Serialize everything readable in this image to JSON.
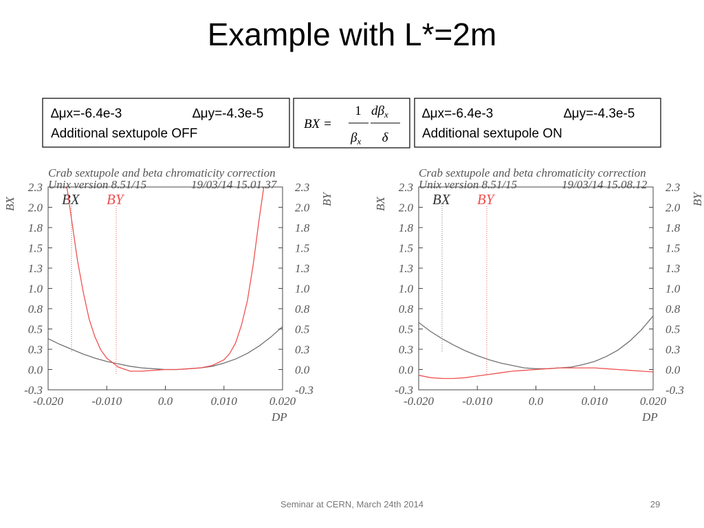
{
  "title": "Example with L*=2m",
  "boxes": [
    {
      "mu_x": "∆μx=-6.4e-3",
      "mu_y": "∆μy=-4.3e-5",
      "text": "Additional sextupole OFF"
    },
    {
      "mu_x": "∆μx=-6.4e-3",
      "mu_y": "∆μy=-4.3e-5",
      "text": "Additional sextupole ON"
    }
  ],
  "formula": {
    "lhs": "BX =",
    "num1": "1",
    "den1": "β",
    "den1_sub": "x",
    "num2": "dβ",
    "num2_sub": "x",
    "den2": "δ"
  },
  "footer": "Seminar at CERN, March 24th 2014",
  "page_number": "29",
  "chart_data": [
    {
      "type": "line",
      "title": "Crab sextupole and beta chromaticity correction",
      "subtitle": "Unix version 8.51/15",
      "timestamp": "19/03/14  15.01.37",
      "xlabel": "DP",
      "ylabel": "BX",
      "y2label": "BY",
      "xlim": [
        -0.02,
        0.02
      ],
      "xticks": [
        {
          "value": -0.02,
          "label": "-0.020"
        },
        {
          "value": -0.01,
          "label": "-0.010"
        },
        {
          "value": 0,
          "label": "0.0"
        },
        {
          "value": 0.01,
          "label": "0.010"
        },
        {
          "value": 0.02,
          "label": "0.020"
        }
      ],
      "ylim": [
        -0.25,
        2.25
      ],
      "yticks": [
        {
          "value": -0.25,
          "label": "-0.3"
        },
        {
          "value": 0,
          "label": "0.0"
        },
        {
          "value": 0.25,
          "label": "0.3"
        },
        0.5,
        {
          "value": 0.75,
          "label": "0.8"
        },
        {
          "value": 1,
          "label": "1.0"
        },
        {
          "value": 1.25,
          "label": "1.3"
        },
        1.5,
        {
          "value": 1.75,
          "label": "1.8"
        },
        {
          "value": 2,
          "label": "2.0"
        },
        {
          "value": 2.25,
          "label": "2.3"
        }
      ],
      "y2lim": [
        -0.25,
        2.25
      ],
      "y2ticks": [
        {
          "value": -0.25,
          "label": "-0.3"
        },
        {
          "value": 0,
          "label": "0.0"
        },
        {
          "value": 0.25,
          "label": "0.3"
        },
        0.5,
        {
          "value": 0.75,
          "label": "0.8"
        },
        {
          "value": 1,
          "label": "1.0"
        },
        {
          "value": 1.25,
          "label": "1.3"
        },
        1.5,
        {
          "value": 1.75,
          "label": "1.8"
        },
        {
          "value": 2,
          "label": "2.0"
        },
        {
          "value": 2.25,
          "label": "2.3"
        }
      ],
      "series": [
        {
          "name": "BX",
          "color": "#707070",
          "x": [
            -0.02,
            -0.018,
            -0.016,
            -0.014,
            -0.012,
            -0.01,
            -0.008,
            -0.006,
            -0.004,
            -0.002,
            0,
            0.002,
            0.004,
            0.006,
            0.008,
            0.01,
            0.012,
            0.014,
            0.016,
            0.018,
            0.02
          ],
          "values": [
            0.38,
            0.31,
            0.25,
            0.19,
            0.14,
            0.1,
            0.07,
            0.04,
            0.02,
            0.01,
            0,
            0,
            0.01,
            0.02,
            0.04,
            0.08,
            0.13,
            0.2,
            0.29,
            0.4,
            0.53
          ]
        },
        {
          "name": "BY",
          "color": "#f05050",
          "axis": "y2",
          "x": [
            -0.0168,
            -0.016,
            -0.015,
            -0.014,
            -0.013,
            -0.012,
            -0.011,
            -0.01,
            -0.008,
            -0.006,
            -0.004,
            -0.002,
            0,
            0.002,
            0.004,
            0.006,
            0.008,
            0.01,
            0.011,
            0.012,
            0.013,
            0.014,
            0.015,
            0.016,
            0.0168
          ],
          "values": [
            2.25,
            1.85,
            1.35,
            0.95,
            0.62,
            0.4,
            0.24,
            0.14,
            0.03,
            -0.02,
            -0.02,
            -0.01,
            0,
            0,
            0.01,
            0.02,
            0.05,
            0.12,
            0.2,
            0.33,
            0.55,
            0.85,
            1.3,
            1.85,
            2.25
          ]
        }
      ]
    },
    {
      "type": "line",
      "title": "Crab sextupole and beta chromaticity correction",
      "subtitle": "Unix version 8.51/15",
      "timestamp": "19/03/14  15.08.12",
      "xlabel": "DP",
      "ylabel": "BX",
      "y2label": "BY",
      "xlim": [
        -0.02,
        0.02
      ],
      "xticks": [
        {
          "value": -0.02,
          "label": "-0.020"
        },
        {
          "value": -0.01,
          "label": "-0.010"
        },
        {
          "value": 0,
          "label": "0.0"
        },
        {
          "value": 0.01,
          "label": "0.010"
        },
        {
          "value": 0.02,
          "label": "0.020"
        }
      ],
      "ylim": [
        -0.25,
        2.25
      ],
      "yticks": [
        {
          "value": -0.25,
          "label": "-0.3"
        },
        {
          "value": 0,
          "label": "0.0"
        },
        {
          "value": 0.25,
          "label": "0.3"
        },
        0.5,
        {
          "value": 0.75,
          "label": "0.8"
        },
        {
          "value": 1,
          "label": "1.0"
        },
        {
          "value": 1.25,
          "label": "1.3"
        },
        1.5,
        {
          "value": 1.75,
          "label": "1.8"
        },
        {
          "value": 2,
          "label": "2.0"
        },
        {
          "value": 2.25,
          "label": "2.3"
        }
      ],
      "y2lim": [
        -0.25,
        2.25
      ],
      "y2ticks": [
        {
          "value": -0.25,
          "label": "-0.3"
        },
        {
          "value": 0,
          "label": "0.0"
        },
        {
          "value": 0.25,
          "label": "0.3"
        },
        0.5,
        {
          "value": 0.75,
          "label": "0.8"
        },
        {
          "value": 1,
          "label": "1.0"
        },
        {
          "value": 1.25,
          "label": "1.3"
        },
        1.5,
        {
          "value": 1.75,
          "label": "1.8"
        },
        {
          "value": 2,
          "label": "2.0"
        },
        {
          "value": 2.25,
          "label": "2.3"
        }
      ],
      "series": [
        {
          "name": "BX",
          "color": "#707070",
          "x": [
            -0.02,
            -0.018,
            -0.016,
            -0.014,
            -0.012,
            -0.01,
            -0.008,
            -0.006,
            -0.004,
            -0.002,
            0,
            0.002,
            0.004,
            0.006,
            0.008,
            0.01,
            0.012,
            0.014,
            0.016,
            0.018,
            0.02
          ],
          "values": [
            0.58,
            0.47,
            0.38,
            0.3,
            0.23,
            0.17,
            0.12,
            0.08,
            0.05,
            0.02,
            0.01,
            0.01,
            0.02,
            0.03,
            0.06,
            0.1,
            0.16,
            0.24,
            0.35,
            0.49,
            0.66
          ]
        },
        {
          "name": "BY",
          "color": "#f05050",
          "axis": "y2",
          "x": [
            -0.02,
            -0.018,
            -0.016,
            -0.014,
            -0.012,
            -0.01,
            -0.008,
            -0.006,
            -0.004,
            -0.002,
            0,
            0.002,
            0.004,
            0.006,
            0.008,
            0.01,
            0.012,
            0.014,
            0.016,
            0.018,
            0.02
          ],
          "values": [
            -0.07,
            -0.1,
            -0.11,
            -0.11,
            -0.1,
            -0.08,
            -0.06,
            -0.04,
            -0.02,
            -0.01,
            0,
            0.01,
            0.02,
            0.02,
            0.02,
            0.02,
            0.01,
            0,
            -0.01,
            -0.02,
            -0.03
          ]
        }
      ]
    }
  ]
}
